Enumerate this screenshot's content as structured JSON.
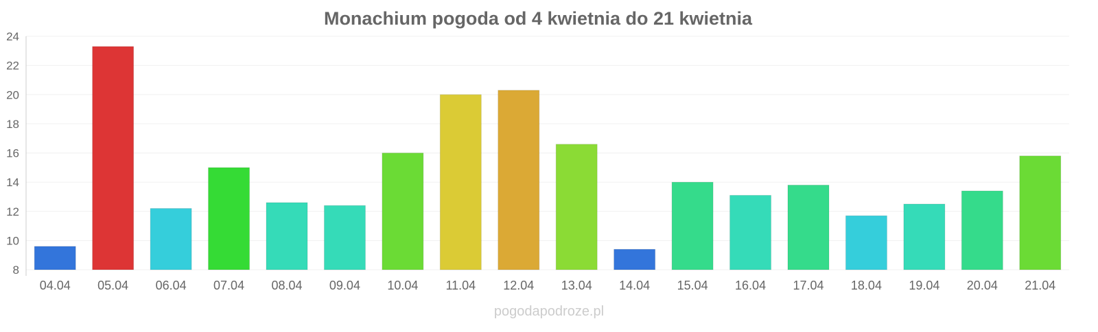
{
  "chart_data": {
    "type": "bar",
    "title": "Monachium pogoda od 4 kwietnia do 21 kwietnia",
    "xlabel": "",
    "ylabel": "",
    "ylim": [
      8,
      24
    ],
    "yticks": [
      8,
      10,
      12,
      14,
      16,
      18,
      20,
      22,
      24
    ],
    "grid": true,
    "categories": [
      "04.04",
      "05.04",
      "06.04",
      "07.04",
      "08.04",
      "09.04",
      "10.04",
      "11.04",
      "12.04",
      "13.04",
      "14.04",
      "15.04",
      "16.04",
      "17.04",
      "18.04",
      "19.04",
      "20.04",
      "21.04"
    ],
    "values": [
      9.6,
      23.3,
      12.2,
      15.0,
      12.6,
      12.4,
      16.0,
      20.0,
      20.3,
      16.6,
      9.4,
      14.0,
      13.1,
      13.8,
      11.7,
      12.5,
      13.4,
      15.8
    ],
    "colors": [
      "#3375db",
      "#dd3535",
      "#35cedb",
      "#35db35",
      "#35dbb8",
      "#35dbb8",
      "#6bdb35",
      "#dbcb35",
      "#dba935",
      "#8bdb35",
      "#3375db",
      "#35db8b",
      "#35dbb8",
      "#35db8b",
      "#35cedb",
      "#35dbb8",
      "#35db8b",
      "#6bdb35"
    ]
  },
  "watermark": "pogodapodroze.pl"
}
